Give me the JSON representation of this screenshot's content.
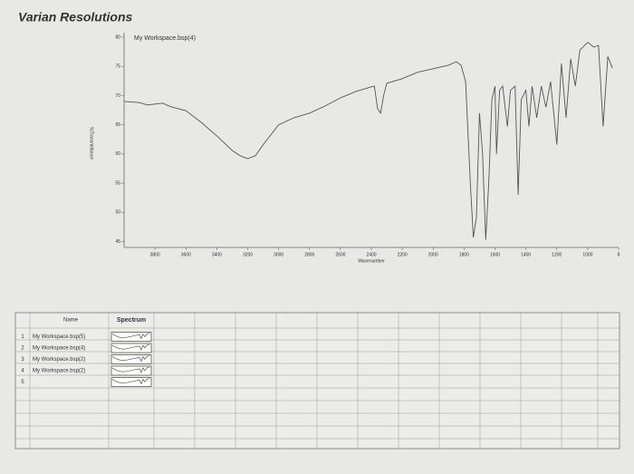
{
  "header": {
    "title": "Varian Resolutions"
  },
  "chart_data": {
    "type": "line",
    "xlabel": "Wavenumber",
    "ylabel": "%Transmittance",
    "x": [
      4000,
      3900,
      3850,
      3750,
      3700,
      3600,
      3500,
      3400,
      3300,
      3250,
      3200,
      3150,
      3100,
      3000,
      2900,
      2800,
      2700,
      2600,
      2500,
      2400,
      2380,
      2360,
      2340,
      2320,
      2300,
      2200,
      2100,
      2000,
      1900,
      1850,
      1820,
      1790,
      1760,
      1740,
      1720,
      1700,
      1680,
      1660,
      1640,
      1620,
      1600,
      1590,
      1570,
      1550,
      1520,
      1500,
      1470,
      1450,
      1430,
      1400,
      1380,
      1360,
      1330,
      1300,
      1270,
      1240,
      1200,
      1170,
      1140,
      1110,
      1080,
      1050,
      1000,
      960,
      930,
      900,
      870,
      840
    ],
    "series": [
      {
        "name": "My Workspace.bsp(4)",
        "color": "#555555",
        "values": [
          69.0,
          68.8,
          68.4,
          68.7,
          68.1,
          67.4,
          65.4,
          63.1,
          60.6,
          59.7,
          59.2,
          59.7,
          61.6,
          65.0,
          66.2,
          67.0,
          68.2,
          69.6,
          70.7,
          71.5,
          71.6,
          67.8,
          67.0,
          70.1,
          72.1,
          72.9,
          74.0,
          74.6,
          75.2,
          75.8,
          75.2,
          72.4,
          55.3,
          45.7,
          49.1,
          67.0,
          60.0,
          45.3,
          55.3,
          69.3,
          71.6,
          60.0,
          70.9,
          71.6,
          64.7,
          70.9,
          71.6,
          53.0,
          69.3,
          70.9,
          64.7,
          71.6,
          66.2,
          71.6,
          68.0,
          72.4,
          61.6,
          75.5,
          66.2,
          76.3,
          71.6,
          77.8,
          79.1,
          78.3,
          78.6,
          64.7,
          76.7,
          74.7
        ]
      }
    ],
    "xlim": [
      4000,
      800
    ],
    "xticks": [
      3800,
      3600,
      3400,
      3200,
      3000,
      2800,
      2600,
      2400,
      2200,
      2000,
      1800,
      1600,
      1400,
      1200,
      1000,
      {
        "value": 800,
        "label": "8"
      }
    ],
    "ylim": [
      44,
      80
    ],
    "yticks": [
      45,
      50,
      55,
      60,
      65,
      70,
      75,
      80
    ]
  },
  "table": {
    "columns": [
      "Name",
      "Spectrum"
    ],
    "rows": [
      [
        "1",
        "My Workspace.bsp(5)"
      ],
      [
        "2",
        "My Workspace.bsp(4)"
      ],
      [
        "3",
        "My Workspace.bsp(2)"
      ],
      [
        "4",
        "My Workspace.bsp(2)"
      ],
      [
        "5"
      ]
    ]
  }
}
